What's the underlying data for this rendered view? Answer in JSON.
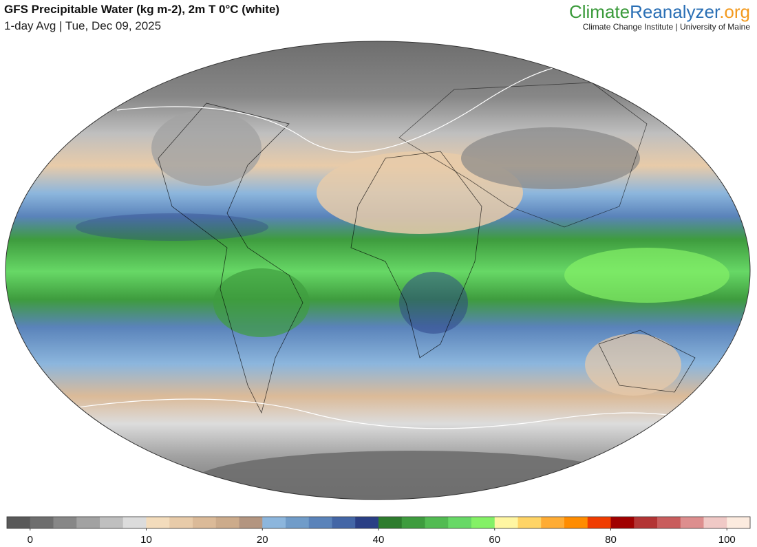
{
  "header": {
    "title": "GFS Precipitable Water (kg m-2), 2m T 0°C (white)",
    "subtitle": "1-day Avg | Tue, Dec 09, 2025",
    "logo": {
      "part1": "Climate",
      "part2": "Reanalyzer",
      "part3": ".org"
    },
    "organization": "Climate Change Institute | University of Maine"
  },
  "colorbar": {
    "ticks": [
      0,
      10,
      20,
      40,
      60,
      80,
      100
    ],
    "colors": [
      "#595959",
      "#6e6e6e",
      "#878787",
      "#a2a2a2",
      "#bfbfbf",
      "#dcdcdc",
      "#f3dcbc",
      "#e8cba9",
      "#dbba98",
      "#ccab8b",
      "#b39580",
      "#8cb6dd",
      "#709cc9",
      "#5a83ba",
      "#4366a6",
      "#2a3f85",
      "#2d7c2d",
      "#3e9c3e",
      "#52bb52",
      "#67d866",
      "#84f166",
      "#fff6a2",
      "#ffd466",
      "#ffac34",
      "#ff8c00",
      "#f03c00",
      "#a00000",
      "#b33434",
      "#c95d5d",
      "#dd8e8e",
      "#f0c9c6",
      "#fcebdf"
    ]
  }
}
